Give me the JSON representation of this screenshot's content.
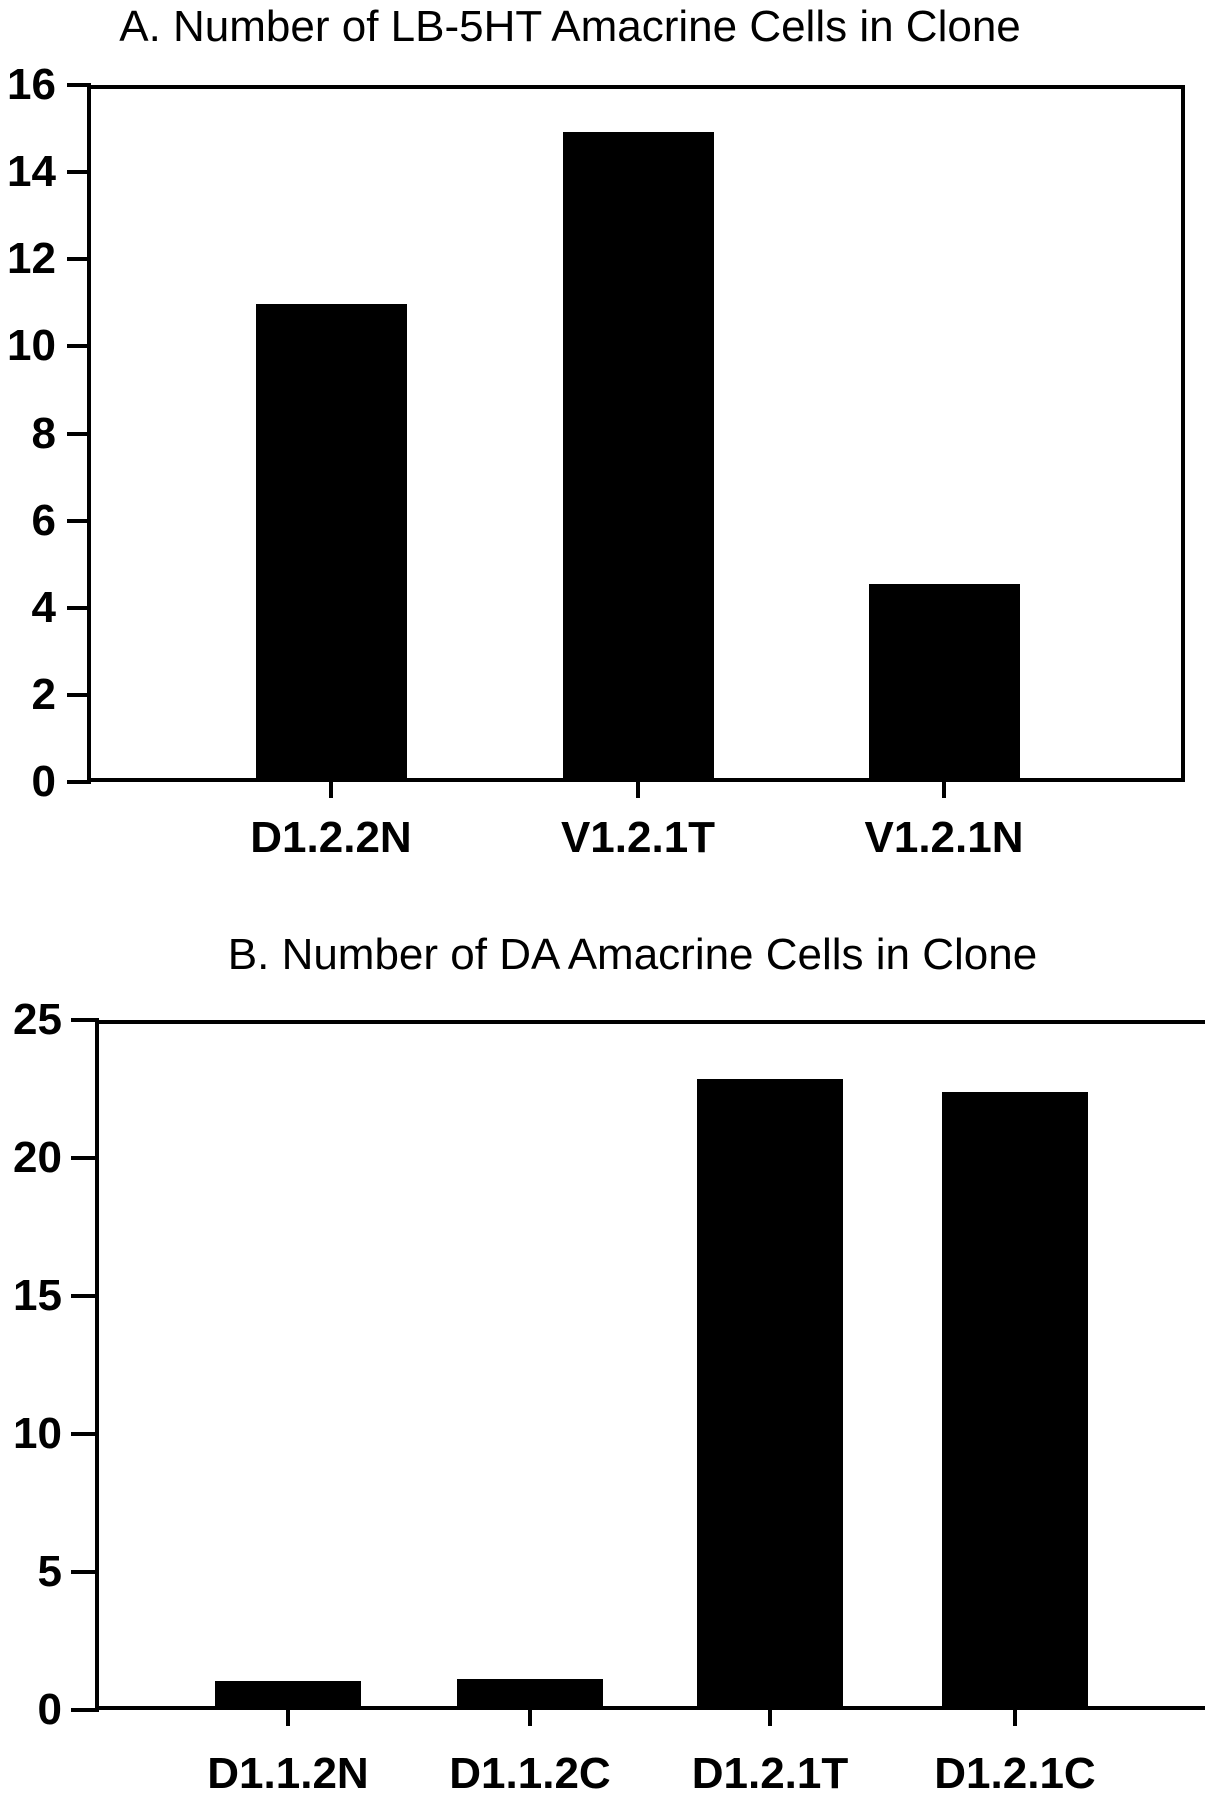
{
  "page": {
    "background": "#ffffff",
    "text_color": "#000000",
    "bar_color": "#000000"
  },
  "chart_data": [
    {
      "type": "bar",
      "panel": "A",
      "title": "A. Number of LB-5HT Amacrine Cells in Clone",
      "categories": [
        "D1.2.2N",
        "V1.2.1T",
        "V1.2.1N"
      ],
      "values": [
        11,
        15,
        4.5
      ],
      "xlabel": "",
      "ylabel": "",
      "ylim": [
        0,
        16
      ],
      "yticks": [
        0,
        2,
        4,
        6,
        8,
        10,
        12,
        14,
        16
      ],
      "grid": false,
      "legend": false,
      "bar_color": "#000000",
      "frame": "closed-box"
    },
    {
      "type": "bar",
      "panel": "B",
      "title": "B. Number of DA Amacrine Cells in Clone",
      "categories": [
        "D1.1.2N",
        "D1.1.2C",
        "D1.2.1T",
        "D1.2.1C"
      ],
      "values": [
        0.9,
        1,
        23,
        22.5
      ],
      "xlabel": "",
      "ylabel": "",
      "ylim": [
        0,
        25
      ],
      "yticks": [
        0,
        5,
        10,
        15,
        20,
        25
      ],
      "grid": false,
      "legend": false,
      "bar_color": "#000000",
      "frame": "open-right"
    }
  ]
}
